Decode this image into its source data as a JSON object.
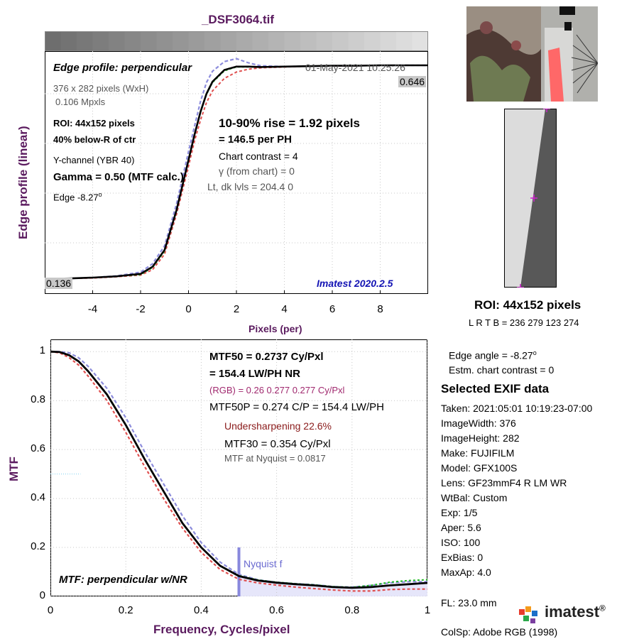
{
  "title": "_DSF3064.tif",
  "edge_panel": {
    "heading": "Edge profile: perpendicular",
    "timestamp": "01-May-2021 10:25:26",
    "dims": "376 x 282 pixels (WxH)",
    "mpxls": "0.106 Mpxls",
    "roi": "ROI:  44x152 pixels",
    "location": "40% below-R of ctr",
    "channel": "Y-channel  (YBR 40)",
    "gamma": "Gamma = 0.50 (MTF calc.)",
    "edge_angle": "Edge  -8.27",
    "degree_mark": "o",
    "rise": "10-90% rise = 1.92 pixels",
    "per_ph": "=  146.5 per PH",
    "contrast": "Chart contrast = 4",
    "gamma_chart": "γ (from chart) =     0",
    "levels": "Lt, dk lvls = 204.4  0",
    "version": "Imatest 2020.2.5",
    "top_level": "0.646",
    "bottom_level": "0.136",
    "ylabel": "Edge profile (linear)",
    "xlabel": "Pixels (per)"
  },
  "mtf_panel": {
    "mtf50": "MTF50 = 0.2737 Cy/Pxl",
    "lwph": "= 154.4 LW/PH  NR",
    "rgb": "(RGB) = 0.26  0.277  0.277 Cy/Pxl",
    "mtf50p": "MTF50P = 0.274 C/P = 154.4 LW/PH",
    "undersharp": "Undersharpening 22.6%",
    "mtf30": "MTF30 = 0.354 Cy/Pxl",
    "nyq": "MTF at Nyquist = 0.0817",
    "nyquist_label": "Nyquist f",
    "heading": "MTF: perpendicular w/NR",
    "ylabel": "MTF",
    "xlabel": "Frequency, Cycles/pixel"
  },
  "roi_panel": {
    "title": "ROI:  44x152 pixels",
    "coords": "L R  T B = 236 279  123 274"
  },
  "side_info": {
    "edge_angle": "Edge angle = -8.27",
    "degree_mark": "o",
    "contrast": "Estm. chart contrast = 0",
    "exif_title": "Selected EXIF data",
    "exif": [
      "Taken: 2021:05:01 10:19:23-07:00",
      "ImageWidth:  376",
      "ImageHeight:  282",
      "Make:  FUJIFILM",
      "Model:  GFX100S",
      "Lens:   GF23mmF4 R LM WR",
      "WtBal:  Custom",
      "Exp:    1/5",
      "Aper:   5.6",
      "ISO:    100",
      "ExBias:  0",
      "MaxAp:  4.0"
    ],
    "fl": "FL:     23.0 mm",
    "colsp": "ColSp:  Adobe RGB (1998)",
    "logo": "imatest",
    "logo_mark": "®"
  },
  "chart_data": [
    {
      "type": "line",
      "title": "Edge profile: perpendicular",
      "xlabel": "Pixels (per)",
      "ylabel": "Edge profile (linear)",
      "xlim": [
        -6,
        10
      ],
      "ylim": [
        0.1,
        0.68
      ],
      "x_ticks": [
        -4,
        -2,
        0,
        2,
        4,
        6,
        8
      ],
      "grid": true,
      "x": [
        -6,
        -5,
        -4,
        -3,
        -2,
        -1.5,
        -1,
        -0.5,
        0,
        0.25,
        0.5,
        0.75,
        1,
        1.5,
        2,
        2.5,
        3,
        4,
        5,
        6,
        7,
        8,
        9,
        10
      ],
      "series": [
        {
          "color": "#000000",
          "values": [
            0.136,
            0.137,
            0.139,
            0.142,
            0.148,
            0.165,
            0.205,
            0.3,
            0.42,
            0.48,
            0.535,
            0.578,
            0.607,
            0.635,
            0.643,
            0.643,
            0.642,
            0.643,
            0.644,
            0.645,
            0.645,
            0.646,
            0.646,
            0.646
          ]
        },
        {
          "color": "#8c8cdc",
          "values": [
            0.136,
            0.137,
            0.139,
            0.143,
            0.152,
            0.172,
            0.215,
            0.315,
            0.44,
            0.5,
            0.56,
            0.605,
            0.632,
            0.655,
            0.662,
            0.652,
            0.645,
            0.643,
            0.644,
            0.645,
            0.645,
            0.646,
            0.646,
            0.646
          ]
        },
        {
          "color": "#e05050",
          "values": [
            0.136,
            0.137,
            0.138,
            0.141,
            0.145,
            0.158,
            0.195,
            0.29,
            0.405,
            0.465,
            0.515,
            0.557,
            0.585,
            0.615,
            0.63,
            0.637,
            0.64,
            0.642,
            0.644,
            0.645,
            0.645,
            0.646,
            0.646,
            0.646
          ]
        },
        {
          "color": "#22bb22",
          "values": [
            0.136,
            0.137,
            0.139,
            0.142,
            0.146,
            0.163,
            0.202,
            0.298,
            0.418,
            0.478,
            0.533,
            0.576,
            0.605,
            0.633,
            0.642,
            0.642,
            0.642,
            0.643,
            0.644,
            0.645,
            0.645,
            0.646,
            0.646,
            0.646
          ]
        }
      ]
    },
    {
      "type": "line",
      "title": "MTF: perpendicular w/NR",
      "xlabel": "Frequency, Cycles/pixel",
      "ylabel": "MTF",
      "xlim": [
        0,
        1
      ],
      "ylim": [
        0,
        1.05
      ],
      "x_ticks": [
        0,
        0.2,
        0.4,
        0.6,
        0.8,
        1
      ],
      "y_ticks": [
        0,
        0.2,
        0.4,
        0.6,
        0.8,
        1
      ],
      "grid": true,
      "nyquist": 0.5,
      "x": [
        0,
        0.025,
        0.05,
        0.075,
        0.1,
        0.15,
        0.2,
        0.25,
        0.3,
        0.35,
        0.4,
        0.45,
        0.5,
        0.55,
        0.6,
        0.65,
        0.7,
        0.75,
        0.8,
        0.85,
        0.9,
        0.95,
        1.0
      ],
      "series": [
        {
          "color": "#000000",
          "values": [
            1.0,
            0.998,
            0.985,
            0.96,
            0.92,
            0.825,
            0.7,
            0.56,
            0.43,
            0.3,
            0.2,
            0.125,
            0.083,
            0.065,
            0.056,
            0.05,
            0.045,
            0.038,
            0.035,
            0.038,
            0.045,
            0.05,
            0.055
          ]
        },
        {
          "color": "#8c8cdc",
          "values": [
            1.0,
            1.0,
            0.995,
            0.975,
            0.94,
            0.85,
            0.73,
            0.59,
            0.46,
            0.33,
            0.22,
            0.14,
            0.09,
            0.068,
            0.058,
            0.052,
            0.048,
            0.04,
            0.038,
            0.045,
            0.055,
            0.06,
            0.06
          ]
        },
        {
          "color": "#e05050",
          "values": [
            1.0,
            0.995,
            0.975,
            0.945,
            0.9,
            0.8,
            0.67,
            0.53,
            0.4,
            0.28,
            0.18,
            0.11,
            0.07,
            0.055,
            0.046,
            0.038,
            0.032,
            0.026,
            0.022,
            0.022,
            0.028,
            0.03,
            0.03
          ]
        },
        {
          "color": "#22bb22",
          "values": [
            1.0,
            0.998,
            0.985,
            0.96,
            0.92,
            0.825,
            0.7,
            0.56,
            0.43,
            0.3,
            0.2,
            0.125,
            0.085,
            0.067,
            0.058,
            0.052,
            0.047,
            0.04,
            0.037,
            0.045,
            0.058,
            0.065,
            0.068
          ]
        }
      ]
    }
  ]
}
